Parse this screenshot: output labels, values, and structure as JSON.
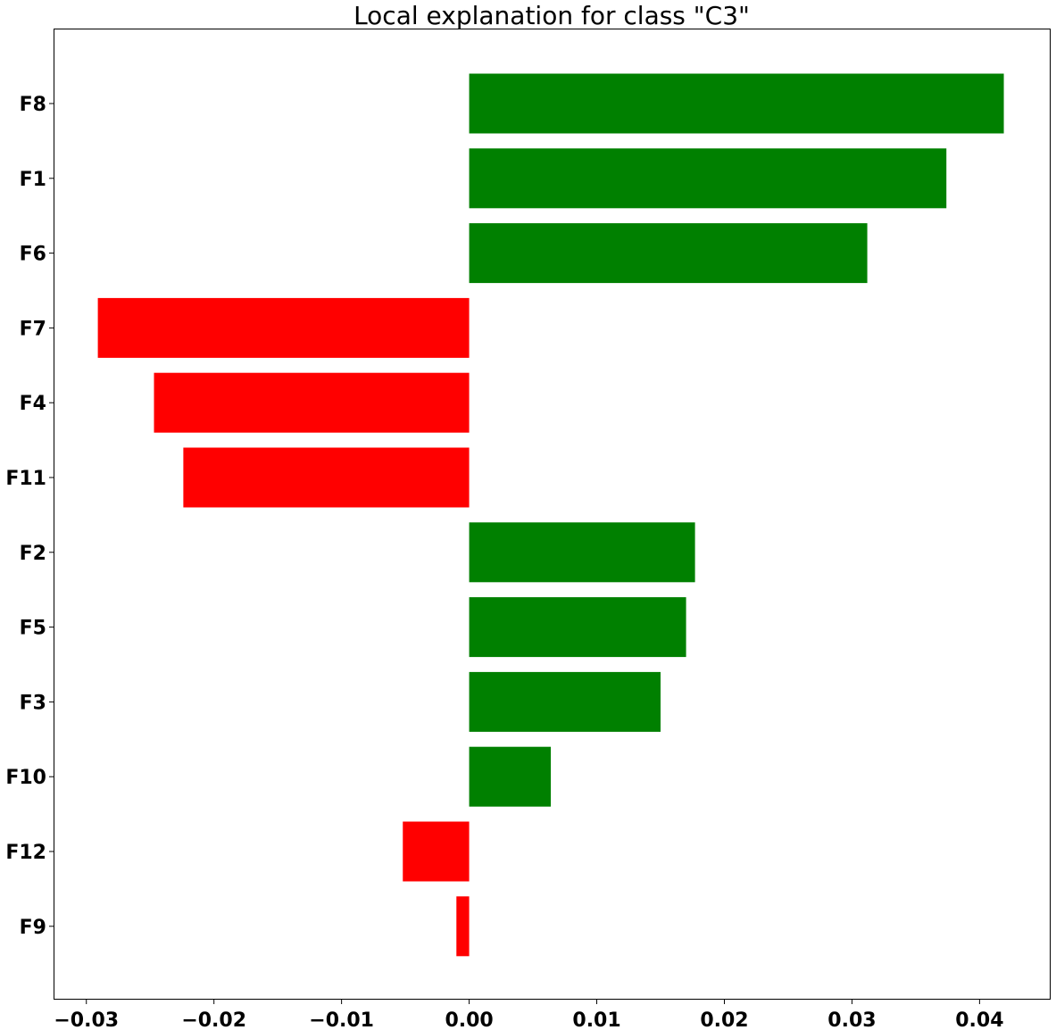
{
  "chart_data": {
    "type": "bar",
    "orientation": "horizontal",
    "title": "Local explanation for class \"C3\"",
    "xlabel": "",
    "ylabel": "",
    "xlim": [
      -0.0325,
      0.0455
    ],
    "grid": false,
    "legend": "none",
    "categories": [
      "F8",
      "F1",
      "F6",
      "F7",
      "F4",
      "F11",
      "F2",
      "F5",
      "F3",
      "F10",
      "F12",
      "F9"
    ],
    "values": [
      0.0419,
      0.0374,
      0.0312,
      -0.0291,
      -0.0247,
      -0.0224,
      0.0177,
      0.017,
      0.015,
      0.0064,
      -0.0052,
      -0.001
    ],
    "x_ticks": [
      {
        "value": -0.03,
        "label": "−0.03"
      },
      {
        "value": -0.02,
        "label": "−0.02"
      },
      {
        "value": -0.01,
        "label": "−0.01"
      },
      {
        "value": 0.0,
        "label": "0.00"
      },
      {
        "value": 0.01,
        "label": "0.01"
      },
      {
        "value": 0.02,
        "label": "0.02"
      },
      {
        "value": 0.03,
        "label": "0.03"
      },
      {
        "value": 0.04,
        "label": "0.04"
      }
    ],
    "colors": {
      "positive": "#008000",
      "negative": "#ff0000"
    }
  }
}
